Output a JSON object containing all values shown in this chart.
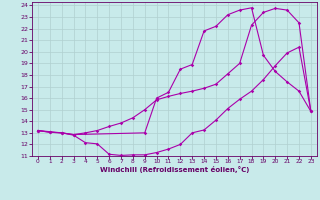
{
  "xlabel": "Windchill (Refroidissement éolien,°C)",
  "bg_color": "#c8eaea",
  "line_color": "#aa00aa",
  "xlim": [
    -0.5,
    23.5
  ],
  "ylim": [
    11,
    24.3
  ],
  "xticks": [
    0,
    1,
    2,
    3,
    4,
    5,
    6,
    7,
    8,
    9,
    10,
    11,
    12,
    13,
    14,
    15,
    16,
    17,
    18,
    19,
    20,
    21,
    22,
    23
  ],
  "yticks": [
    11,
    12,
    13,
    14,
    15,
    16,
    17,
    18,
    19,
    20,
    21,
    22,
    23,
    24
  ],
  "line1_x": [
    0,
    1,
    2,
    3,
    4,
    5,
    6,
    7,
    8,
    9,
    10,
    11,
    12,
    13,
    14,
    15,
    16,
    17,
    18,
    19,
    20,
    21,
    22,
    23
  ],
  "line1_y": [
    13.2,
    13.1,
    13.0,
    12.8,
    12.15,
    12.05,
    11.15,
    11.05,
    11.1,
    11.1,
    11.3,
    11.6,
    12.0,
    13.0,
    13.25,
    14.1,
    15.1,
    15.9,
    16.6,
    17.6,
    18.8,
    19.9,
    20.4,
    14.85
  ],
  "line2_x": [
    0,
    1,
    2,
    3,
    4,
    5,
    6,
    7,
    8,
    9,
    10,
    11,
    12,
    13,
    14,
    15,
    16,
    17,
    18,
    19,
    20,
    21,
    22,
    23
  ],
  "line2_y": [
    13.2,
    13.05,
    13.0,
    12.85,
    13.0,
    13.2,
    13.55,
    13.85,
    14.3,
    15.0,
    15.85,
    16.15,
    16.4,
    16.6,
    16.85,
    17.2,
    18.1,
    19.0,
    22.3,
    23.4,
    23.75,
    23.6,
    22.5,
    14.85
  ],
  "line3_x": [
    0,
    1,
    2,
    3,
    9,
    10,
    11,
    12,
    13,
    14,
    15,
    16,
    17,
    18,
    19,
    20,
    21,
    22,
    23
  ],
  "line3_y": [
    13.2,
    13.05,
    13.0,
    12.85,
    13.0,
    16.0,
    16.5,
    18.5,
    18.9,
    21.8,
    22.2,
    23.2,
    23.6,
    23.8,
    19.7,
    18.3,
    17.4,
    16.6,
    14.85
  ],
  "grid_color": "#b0d0d0",
  "markersize": 1.8,
  "linewidth": 0.8
}
